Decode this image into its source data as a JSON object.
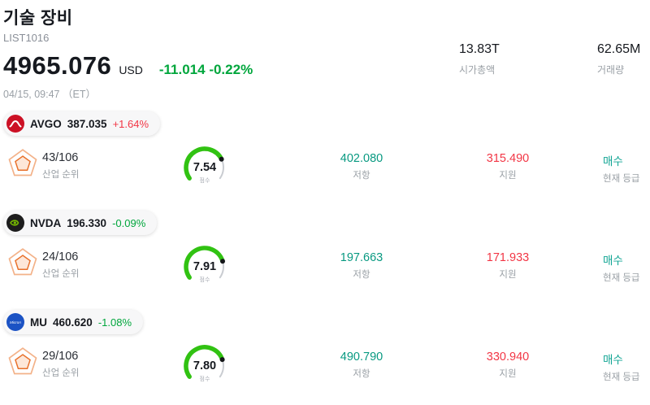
{
  "colors": {
    "up": "#f23645",
    "down": "#00a63c",
    "resistance": "#089981",
    "support": "#f23645",
    "rating_buy": "#12a594",
    "gauge": "#31c212",
    "gauge_track": "#c9ccd1"
  },
  "icons": {
    "rank": "pentagon-radar-icon",
    "gauge": "score-gauge",
    "logos": [
      "avgo-logo",
      "nvda-logo",
      "mu-logo"
    ]
  },
  "header": {
    "title": "기술 장비",
    "list_id": "LIST1016",
    "price": "4965.076",
    "currency": "USD",
    "change": "-11.014 -0.22%",
    "change_dir": "down",
    "datetime": "04/15, 09:47 （ET）",
    "market_cap": {
      "value": "13.83T",
      "label": "시가총액"
    },
    "volume": {
      "value": "62.65M",
      "label": "거래량"
    }
  },
  "rows": [
    {
      "ticker": "AVGO",
      "price": "387.035",
      "change": "+1.64%",
      "change_dir": "up",
      "rank": "43/106",
      "rank_label": "산업 순위",
      "score": "7.54",
      "score_label": "점수",
      "resistance": "402.080",
      "resistance_label": "저항",
      "support": "315.490",
      "support_label": "지원",
      "rating": "매수",
      "rating_label": "현재 등급"
    },
    {
      "ticker": "NVDA",
      "price": "196.330",
      "change": "-0.09%",
      "change_dir": "down",
      "rank": "24/106",
      "rank_label": "산업 순위",
      "score": "7.91",
      "score_label": "점수",
      "resistance": "197.663",
      "resistance_label": "저항",
      "support": "171.933",
      "support_label": "지원",
      "rating": "매수",
      "rating_label": "현재 등급"
    },
    {
      "ticker": "MU",
      "price": "460.620",
      "change": "-1.08%",
      "change_dir": "down",
      "rank": "29/106",
      "rank_label": "산업 순위",
      "score": "7.80",
      "score_label": "점수",
      "resistance": "490.790",
      "resistance_label": "저항",
      "support": "330.940",
      "support_label": "지원",
      "rating": "매수",
      "rating_label": "현재 등급"
    }
  ]
}
